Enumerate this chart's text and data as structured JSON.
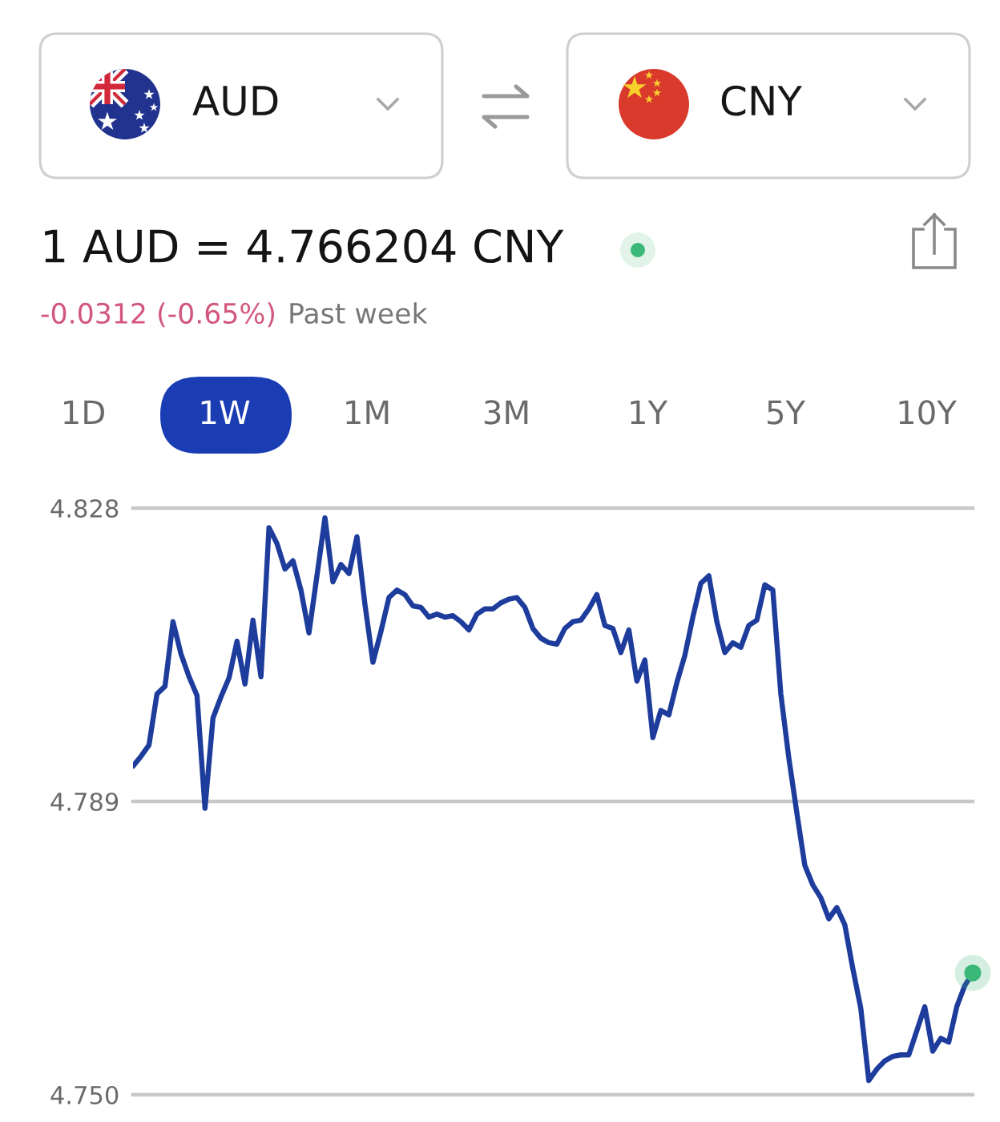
{
  "chart_data": {
    "type": "line",
    "title": "1 AUD = 4.766204 CNY",
    "annotations": [
      "AUD",
      "CNY",
      "-0.0312 (-0.65%)",
      "Past week",
      "1D",
      "1W",
      "1M",
      "3M",
      "1Y",
      "5Y",
      "10Y"
    ],
    "categories": [
      null,
      null,
      null,
      null,
      null,
      null,
      null,
      null,
      null,
      null,
      null,
      null,
      null,
      null,
      null,
      null,
      null,
      null,
      null,
      null,
      null,
      null,
      null,
      null,
      null,
      null,
      null,
      null,
      null,
      null,
      null,
      null,
      null,
      null,
      null,
      null,
      null,
      null,
      null,
      null,
      null,
      null,
      null,
      null,
      null,
      null,
      null,
      null,
      null,
      null,
      null,
      null,
      null,
      null,
      null,
      null,
      null,
      null,
      null,
      null,
      null,
      null,
      null,
      null,
      null,
      null,
      null,
      null,
      null,
      null,
      null,
      null,
      null,
      null,
      null,
      null,
      null,
      null,
      null,
      null,
      null,
      null,
      null,
      null,
      null,
      null,
      null,
      null,
      null,
      null,
      null,
      null,
      null,
      null,
      null,
      null,
      null,
      null,
      null,
      null,
      null,
      null,
      null,
      null,
      null,
      null
    ],
    "series": [
      {
        "color": "#1d3c9c",
        "values": [
          4.7937,
          4.795,
          4.7965,
          4.8033,
          4.8043,
          4.8129,
          4.8086,
          4.8056,
          4.8031,
          4.7881,
          4.8001,
          4.8029,
          4.8054,
          4.8103,
          4.8046,
          4.8131,
          4.8056,
          4.8254,
          4.8233,
          4.8199,
          4.821,
          4.8171,
          4.8114,
          4.819,
          4.8267,
          4.8182,
          4.8205,
          4.8193,
          4.8242,
          4.8152,
          4.8075,
          4.8116,
          4.8161,
          4.8171,
          4.8165,
          4.815,
          4.8148,
          4.8135,
          4.8139,
          4.8135,
          4.8137,
          4.8129,
          4.8118,
          4.8139,
          4.8146,
          4.8146,
          4.8154,
          4.8159,
          4.8161,
          4.8148,
          4.812,
          4.8107,
          4.8101,
          4.8099,
          4.812,
          4.8129,
          4.8131,
          4.8146,
          4.8165,
          4.8124,
          4.812,
          4.8088,
          4.8118,
          4.805,
          4.8078,
          4.7975,
          4.8011,
          4.8005,
          4.8048,
          4.8084,
          4.8135,
          4.818,
          4.819,
          4.8129,
          4.8088,
          4.8101,
          4.8095,
          4.8124,
          4.8131,
          4.8178,
          4.8171,
          4.8033,
          4.7948,
          4.7875,
          4.7805,
          4.7779,
          4.7762,
          4.7734,
          4.7749,
          4.7726,
          4.7668,
          4.7615,
          4.7519,
          4.7534,
          4.7545,
          4.7551,
          4.7553,
          4.7553,
          4.7585,
          4.7617,
          4.7558,
          4.7575,
          4.757,
          4.7617,
          4.7645,
          4.7662
        ]
      },
      {
        "type": "scatter",
        "color": "#3cb878",
        "values": [
          null,
          null,
          null,
          null,
          null,
          null,
          null,
          null,
          null,
          null,
          null,
          null,
          null,
          null,
          null,
          null,
          null,
          null,
          null,
          null,
          null,
          null,
          null,
          null,
          null,
          null,
          null,
          null,
          null,
          null,
          null,
          null,
          null,
          null,
          null,
          null,
          null,
          null,
          null,
          null,
          null,
          null,
          null,
          null,
          null,
          null,
          null,
          null,
          null,
          null,
          null,
          null,
          null,
          null,
          null,
          null,
          null,
          null,
          null,
          null,
          null,
          null,
          null,
          null,
          null,
          null,
          null,
          null,
          null,
          null,
          null,
          null,
          null,
          null,
          null,
          null,
          null,
          null,
          null,
          null,
          null,
          null,
          null,
          null,
          null,
          null,
          null,
          null,
          null,
          null,
          null,
          null,
          null,
          null,
          null,
          null,
          null,
          null,
          null,
          null,
          null,
          null,
          null,
          null,
          null,
          4.7662
        ]
      }
    ],
    "ylim": [
      4.75,
      4.828
    ],
    "yticks": [
      4.828,
      4.789,
      {
        "value": 4.75,
        "label": "4.750"
      }
    ],
    "grid": "y",
    "tick_labels": "y"
  }
}
